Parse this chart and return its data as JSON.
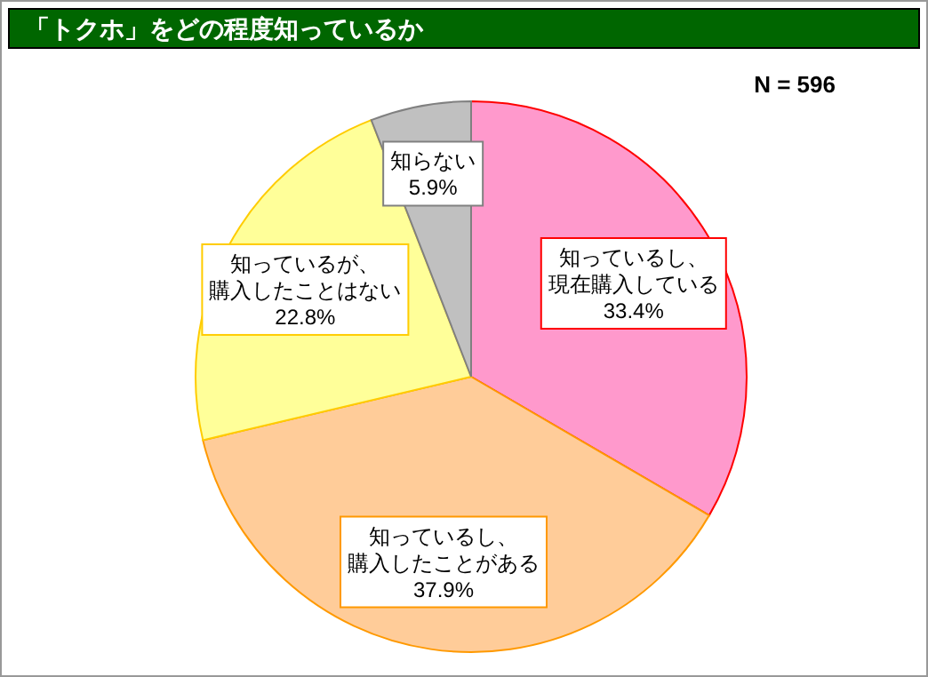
{
  "chart_data": {
    "type": "pie",
    "title": "「トクホ」をどの程度知っているか",
    "categories": [
      "知っているし、現在購入している",
      "知っているし、購入したことがある",
      "知っているが、購入したことはない",
      "知らない"
    ],
    "values": [
      33.4,
      37.9,
      22.8,
      5.9
    ],
    "colors": [
      "#ff99cc",
      "#ffcc99",
      "#ffff99",
      "#c0c0c0"
    ],
    "value_labels": [
      "33.4%",
      "37.9%",
      "22.8%",
      "5.9%"
    ],
    "annotations": [
      "N = 596"
    ]
  }
}
